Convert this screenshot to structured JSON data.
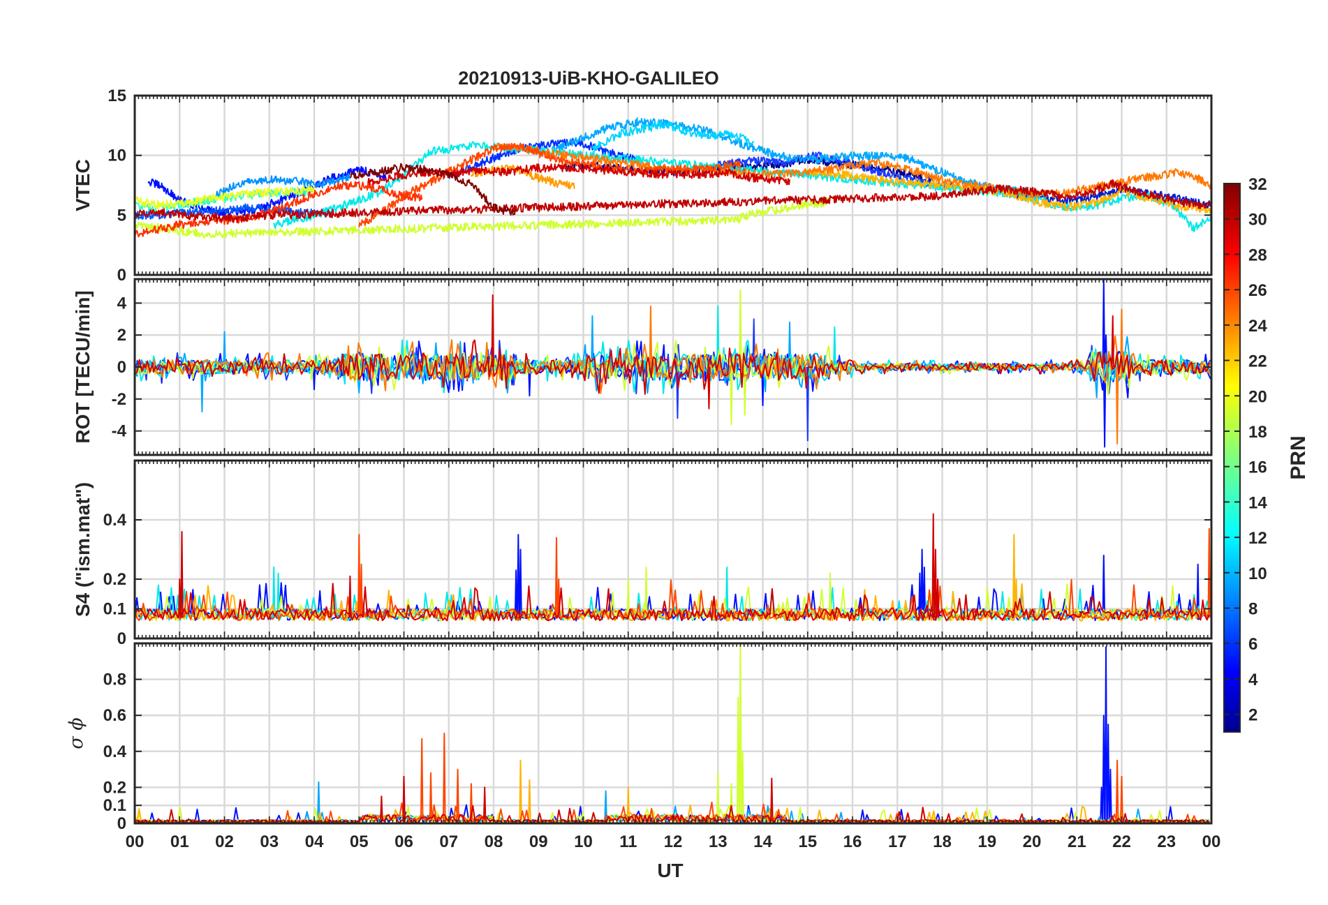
{
  "figure": {
    "title": "20210913-UiB-KHO-GALILEO",
    "xlabel": "UT",
    "colorbar_label": "PRN"
  },
  "chart_data": [
    {
      "type": "line",
      "panel": "vtec",
      "title": "20210913-UiB-KHO-GALILEO",
      "ylabel": "VTEC",
      "xlim": [
        0,
        24
      ],
      "ylim": [
        0,
        15
      ],
      "yticks": [
        0,
        5,
        10,
        15
      ],
      "grid": true,
      "series": [
        {
          "prn": 1,
          "color": "#00008f",
          "x": [
            9.6,
            10.2,
            11.0,
            12.0,
            13.0,
            14.0,
            15.0,
            16.0,
            17.0,
            17.8
          ],
          "y": [
            9.0,
            9.2,
            8.8,
            8.6,
            8.9,
            9.1,
            9.6,
            9.2,
            8.6,
            8.0
          ]
        },
        {
          "prn": 2,
          "color": "#0010ff",
          "x": [
            0.3,
            0.6,
            1.0,
            1.5,
            2.0,
            2.6,
            3.2,
            3.8,
            4.4,
            5.0,
            5.6
          ],
          "y": [
            7.8,
            7.4,
            6.2,
            5.6,
            5.2,
            5.3,
            6.2,
            7.1,
            8.1,
            8.8,
            8.2
          ]
        },
        {
          "prn": 3,
          "color": "#0030ff",
          "x": [
            7.0,
            7.8,
            8.5,
            9.2,
            9.9,
            10.5,
            11.2
          ],
          "y": [
            8.2,
            9.5,
            10.5,
            10.9,
            11.1,
            10.3,
            9.6
          ]
        },
        {
          "prn": 4,
          "color": "#0020d0",
          "x": [
            19.5,
            20.3,
            21.0,
            21.5,
            22.0,
            22.6,
            23.2,
            23.6,
            24.0
          ],
          "y": [
            6.8,
            6.4,
            6.2,
            6.6,
            7.2,
            6.8,
            6.4,
            6.1,
            5.8
          ]
        },
        {
          "prn": 5,
          "color": "#1a3cff",
          "x": [
            13.0,
            13.8,
            14.5,
            15.2,
            16.0,
            16.8,
            17.5,
            18.3
          ],
          "y": [
            9.2,
            9.6,
            9.4,
            10.0,
            9.3,
            8.4,
            7.8,
            7.4
          ]
        },
        {
          "prn": 6,
          "color": "#0058ff",
          "x": [
            0.0,
            0.5,
            1.2,
            1.9,
            2.6,
            3.2,
            3.8,
            4.4
          ],
          "y": [
            5.0,
            5.0,
            5.2,
            5.4,
            5.7,
            5.4,
            5.2,
            5.1
          ]
        },
        {
          "prn": 8,
          "color": "#0090ff",
          "x": [
            1.8,
            2.3,
            3.0,
            3.6,
            4.2,
            4.8
          ],
          "y": [
            6.6,
            7.6,
            8.0,
            7.8,
            7.6,
            8.3
          ]
        },
        {
          "prn": 10,
          "color": "#00a8ff",
          "x": [
            9.3,
            9.8,
            10.5,
            11.2,
            12.0,
            12.8,
            13.5,
            14.3,
            15.0,
            15.8,
            16.5,
            17.2,
            17.8,
            18.5,
            19.2,
            19.8,
            20.3
          ],
          "y": [
            10.4,
            11.2,
            12.2,
            12.8,
            12.6,
            12.0,
            11.0,
            10.0,
            9.6,
            9.9,
            10.0,
            9.8,
            8.9,
            7.8,
            7.2,
            7.0,
            6.8
          ]
        },
        {
          "prn": 12,
          "color": "#00d4ff",
          "x": [
            10.2,
            10.8,
            11.3,
            11.8,
            12.3,
            12.8,
            13.3,
            13.8
          ],
          "y": [
            10.6,
            11.8,
            12.2,
            12.6,
            12.0,
            11.6,
            11.8,
            11.0
          ]
        },
        {
          "prn": 13,
          "color": "#00e8e8",
          "x": [
            3.1,
            3.6,
            4.2,
            4.8,
            5.4,
            6.0,
            6.6,
            7.2,
            7.5,
            19.5,
            20.2,
            20.8,
            21.4,
            22.0,
            22.6,
            23.2,
            23.6,
            24.0
          ],
          "y": [
            4.2,
            4.6,
            5.2,
            6.0,
            6.8,
            8.4,
            10.3,
            10.6,
            10.9,
            6.8,
            6.2,
            5.6,
            5.8,
            6.4,
            6.6,
            5.6,
            3.9,
            4.8
          ]
        },
        {
          "prn": 15,
          "color": "#30ffc8",
          "x": [
            0.0,
            0.5,
            1.0,
            1.6,
            2.2,
            2.8,
            3.4,
            4.0
          ],
          "y": [
            5.8,
            5.6,
            5.9,
            6.2,
            6.5,
            6.8,
            6.9,
            7.0
          ]
        },
        {
          "prn": 19,
          "color": "#d0ff30",
          "x": [
            0.0,
            0.6,
            1.2,
            1.6,
            13.4,
            13.8,
            14.3,
            14.8,
            15.3,
            15.5
          ],
          "y": [
            4.2,
            3.9,
            3.6,
            3.4,
            4.6,
            5.2,
            5.4,
            5.8,
            6.0,
            6.2
          ]
        },
        {
          "prn": 20,
          "color": "#eaff20",
          "x": [
            0.0,
            0.5,
            1.1,
            1.7,
            2.3,
            2.9,
            3.4,
            4.0
          ],
          "y": [
            6.2,
            5.9,
            6.0,
            6.4,
            6.7,
            6.9,
            7.0,
            7.1
          ]
        },
        {
          "prn": 22,
          "color": "#ffb400",
          "x": [
            15.0,
            15.8,
            16.6,
            17.4,
            18.2,
            18.8,
            19.5,
            20.2,
            20.8,
            21.4,
            22.0,
            22.6,
            23.2,
            24.0
          ],
          "y": [
            8.6,
            8.4,
            8.0,
            7.7,
            7.4,
            7.2,
            6.8,
            6.0,
            5.7,
            6.0,
            7.0,
            6.4,
            5.8,
            5.4
          ]
        },
        {
          "prn": 23,
          "color": "#ff9a00",
          "x": [
            7.5,
            8.0,
            8.5,
            9.0,
            9.5,
            9.8
          ],
          "y": [
            8.5,
            8.8,
            8.9,
            8.1,
            7.6,
            7.4
          ]
        },
        {
          "prn": 24,
          "color": "#ff7800",
          "x": [
            8.0,
            8.8,
            9.6,
            10.4,
            11.2,
            12.0,
            12.8,
            13.5,
            14.2,
            15.0,
            15.8,
            16.5,
            17.3,
            18.0,
            18.6,
            19.3,
            20.0,
            20.6,
            21.2,
            21.8,
            22.3,
            22.8,
            23.3,
            23.8,
            24.0
          ],
          "y": [
            10.8,
            10.5,
            10.0,
            9.6,
            9.2,
            8.8,
            8.8,
            8.6,
            8.4,
            8.6,
            9.0,
            9.4,
            8.8,
            8.0,
            7.5,
            7.2,
            6.8,
            6.8,
            7.2,
            7.6,
            8.0,
            8.3,
            8.6,
            7.9,
            7.4
          ]
        },
        {
          "prn": 26,
          "color": "#ff4600",
          "x": [
            5.0,
            5.5,
            6.0,
            6.5,
            7.0,
            7.5,
            8.0,
            8.5,
            9.0,
            9.5,
            10.0,
            10.6,
            11.3,
            12.0,
            12.8,
            13.5
          ],
          "y": [
            4.2,
            5.2,
            6.6,
            7.6,
            8.6,
            9.6,
            10.6,
            10.8,
            10.2,
            9.6,
            9.3,
            8.9,
            8.7,
            8.8,
            9.0,
            9.3
          ]
        },
        {
          "prn": 27,
          "color": "#ff3000",
          "x": [
            0.0,
            0.5,
            1.0,
            1.6,
            2.2,
            2.8,
            3.4,
            4.0,
            4.6,
            5.2,
            5.8,
            6.4
          ],
          "y": [
            3.4,
            3.8,
            4.2,
            4.5,
            4.6,
            5.0,
            5.8,
            6.8,
            7.5,
            7.4,
            6.8,
            6.4
          ]
        },
        {
          "prn": 30,
          "color": "#d00000",
          "x": [
            5.2,
            5.8,
            6.4,
            7.0,
            7.6,
            8.2,
            8.9,
            9.6,
            10.3,
            11.0,
            11.8,
            12.6,
            13.2,
            13.8,
            14.6
          ],
          "y": [
            7.8,
            8.2,
            8.6,
            8.4,
            8.8,
            8.6,
            8.9,
            9.0,
            8.8,
            8.6,
            8.4,
            8.4,
            8.6,
            8.1,
            7.9
          ]
        },
        {
          "prn": 31,
          "color": "#c00000",
          "x": [
            0.0,
            0.6,
            1.2,
            1.8,
            2.4,
            3.0,
            18.0,
            18.7,
            19.3,
            20.0,
            20.6,
            21.2,
            21.8,
            22.3,
            22.8,
            23.4,
            24.0
          ],
          "y": [
            5.1,
            5.2,
            4.9,
            4.8,
            4.7,
            5.0,
            6.6,
            7.0,
            7.2,
            7.0,
            6.6,
            6.8,
            7.6,
            7.0,
            6.5,
            6.0,
            5.8
          ]
        },
        {
          "prn": 32,
          "color": "#800000",
          "x": [
            4.8,
            5.4,
            6.0,
            6.5,
            7.0,
            7.5,
            8.0,
            8.5
          ],
          "y": [
            8.2,
            8.6,
            9.0,
            8.8,
            8.4,
            7.6,
            5.6,
            5.2
          ]
        }
      ]
    },
    {
      "type": "line",
      "panel": "rot",
      "ylabel": "ROT [TECU/min]",
      "xlim": [
        0,
        24
      ],
      "ylim": [
        -5.5,
        5.5
      ],
      "yticks": [
        -4,
        -2,
        0,
        2,
        4
      ],
      "grid": true,
      "series": [
        {
          "prn": 2,
          "color": "#0010ff",
          "x": [
            0.6,
            4.0,
            8.8,
            14.0,
            21.6,
            21.62,
            21.65
          ],
          "y": [
            -1.0,
            -1.4,
            -1.8,
            -2.4,
            5.4,
            -5.0,
            2.0
          ]
        },
        {
          "prn": 5,
          "color": "#1a3cff",
          "x": [
            12.1,
            13.8,
            15.0
          ],
          "y": [
            -3.2,
            3.0,
            -4.6
          ]
        },
        {
          "prn": 10,
          "color": "#00a8ff",
          "x": [
            1.5,
            2.0,
            10.2,
            14.6
          ],
          "y": [
            -2.8,
            2.2,
            3.2,
            2.8
          ]
        },
        {
          "prn": 13,
          "color": "#00e8e8",
          "x": [
            13.0,
            15.6
          ],
          "y": [
            3.8,
            2.5
          ]
        },
        {
          "prn": 19,
          "color": "#d0ff30",
          "x": [
            13.3,
            13.5,
            13.6
          ],
          "y": [
            -3.6,
            4.8,
            -3.0
          ]
        },
        {
          "prn": 24,
          "color": "#ff7800",
          "x": [
            11.5,
            21.9,
            22.0
          ],
          "y": [
            3.8,
            -4.8,
            3.6
          ]
        },
        {
          "prn": 30,
          "color": "#d00000",
          "x": [
            7.98,
            12.8,
            21.8
          ],
          "y": [
            4.5,
            -2.6,
            3.2
          ]
        }
      ]
    },
    {
      "type": "line",
      "panel": "s4",
      "ylabel": "S4 (\"ism.mat\")",
      "xlim": [
        0,
        24
      ],
      "ylim": [
        0,
        0.6
      ],
      "yticks": [
        0,
        0.1,
        0.2,
        0.4
      ],
      "grid": true,
      "series": [
        {
          "prn": 2,
          "color": "#0010ff",
          "x": [
            8.5,
            8.55,
            8.6,
            17.5,
            17.55,
            17.6,
            21.6,
            23.7
          ],
          "y": [
            0.23,
            0.35,
            0.3,
            0.22,
            0.3,
            0.24,
            0.28,
            0.25
          ]
        },
        {
          "prn": 13,
          "color": "#00e8e8",
          "x": [
            3.1,
            3.2,
            13.2
          ],
          "y": [
            0.24,
            0.22,
            0.24
          ]
        },
        {
          "prn": 19,
          "color": "#d0ff30",
          "x": [
            11.0,
            11.4,
            15.5
          ],
          "y": [
            0.2,
            0.24,
            0.22
          ]
        },
        {
          "prn": 22,
          "color": "#ffb400",
          "x": [
            19.6,
            19.65
          ],
          "y": [
            0.35,
            0.2
          ]
        },
        {
          "prn": 26,
          "color": "#ff4600",
          "x": [
            5.0,
            5.05,
            9.4,
            9.45,
            23.95
          ],
          "y": [
            0.35,
            0.25,
            0.34,
            0.2,
            0.37
          ]
        },
        {
          "prn": 30,
          "color": "#d00000",
          "x": [
            1.0,
            1.05,
            4.8,
            17.8,
            17.85,
            17.9
          ],
          "y": [
            0.2,
            0.36,
            0.21,
            0.42,
            0.3,
            0.2
          ]
        }
      ]
    },
    {
      "type": "line",
      "panel": "sigma_phi",
      "ylabel": "σ ϕ",
      "xlim": [
        0,
        24
      ],
      "ylim": [
        0,
        1.0
      ],
      "yticks": [
        0,
        0.1,
        0.2,
        0.4,
        0.6,
        0.8
      ],
      "grid": true,
      "series": [
        {
          "prn": 2,
          "color": "#0010ff",
          "x": [
            21.55,
            21.6,
            21.65,
            21.7,
            21.75
          ],
          "y": [
            0.2,
            0.6,
            0.98,
            0.55,
            0.3
          ]
        },
        {
          "prn": 10,
          "color": "#00a8ff",
          "x": [
            4.1,
            10.5
          ],
          "y": [
            0.23,
            0.18
          ]
        },
        {
          "prn": 19,
          "color": "#d0ff30",
          "x": [
            13.0,
            13.3,
            13.45,
            13.5,
            13.55
          ],
          "y": [
            0.28,
            0.22,
            0.7,
            0.99,
            0.4
          ]
        },
        {
          "prn": 22,
          "color": "#ffb400",
          "x": [
            8.6,
            8.8,
            11.0
          ],
          "y": [
            0.35,
            0.24,
            0.2
          ]
        },
        {
          "prn": 26,
          "color": "#ff4600",
          "x": [
            6.4,
            6.6,
            6.9,
            7.2,
            7.5,
            21.9,
            22.0
          ],
          "y": [
            0.47,
            0.28,
            0.5,
            0.3,
            0.22,
            0.35,
            0.26
          ]
        },
        {
          "prn": 30,
          "color": "#d00000",
          "x": [
            5.5,
            6.0,
            7.8,
            14.2
          ],
          "y": [
            0.15,
            0.26,
            0.2,
            0.25
          ]
        }
      ]
    }
  ],
  "colorbar": {
    "label": "PRN",
    "range": [
      1,
      32
    ],
    "ticks": [
      2,
      4,
      6,
      8,
      10,
      12,
      14,
      16,
      18,
      20,
      22,
      24,
      26,
      28,
      30,
      32
    ],
    "colormap": "jet"
  },
  "xaxis": {
    "label": "UT",
    "ticks": [
      "00",
      "01",
      "02",
      "03",
      "04",
      "05",
      "06",
      "07",
      "08",
      "09",
      "10",
      "11",
      "12",
      "13",
      "14",
      "15",
      "16",
      "17",
      "18",
      "19",
      "20",
      "21",
      "22",
      "23",
      "00"
    ]
  }
}
